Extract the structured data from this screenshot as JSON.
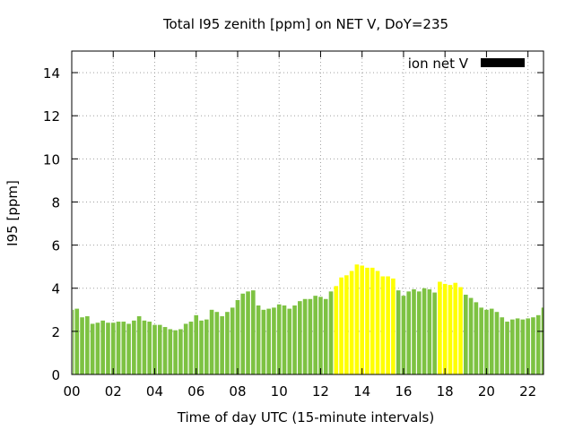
{
  "chart_data": {
    "type": "bar",
    "title": "Total I95 zenith [ppm] on NET V, DoY=235",
    "xlabel": "Time of day UTC (15-minute intervals)",
    "ylabel": "I95 [ppm]",
    "xlim": [
      0,
      22.75
    ],
    "ylim": [
      0,
      15
    ],
    "x_ticks": [
      "00",
      "02",
      "04",
      "06",
      "08",
      "10",
      "12",
      "14",
      "16",
      "18",
      "20",
      "22"
    ],
    "y_ticks": [
      "0",
      "2",
      "4",
      "6",
      "8",
      "10",
      "12",
      "14"
    ],
    "grid": true,
    "legend": {
      "label": "ion net V",
      "position": "top-right",
      "color": "#000000"
    },
    "colors": {
      "normal": "#7dc242",
      "elevated": "#ffff00"
    },
    "bar_interval_hours": 0.25,
    "series": [
      {
        "values": [
          3.0,
          3.05,
          2.65,
          2.7,
          2.35,
          2.4,
          2.5,
          2.4,
          2.4,
          2.45,
          2.45,
          2.35,
          2.5,
          2.7,
          2.5,
          2.45,
          2.3,
          2.3,
          2.2,
          2.1,
          2.05,
          2.1,
          2.35,
          2.45,
          2.75,
          2.5,
          2.55,
          3.0,
          2.9,
          2.7,
          2.9,
          3.1,
          3.45,
          3.75,
          3.85,
          3.9,
          3.2,
          3.0,
          3.05,
          3.1,
          3.25,
          3.2,
          3.05,
          3.2,
          3.4,
          3.5,
          3.5,
          3.65,
          3.6,
          3.5,
          3.85,
          4.1,
          4.5,
          4.6,
          4.8,
          5.1,
          5.05,
          4.95,
          4.95,
          4.8,
          4.55,
          4.55,
          4.45,
          3.9,
          3.65,
          3.85,
          3.95,
          3.85,
          4.0,
          3.95,
          3.8,
          4.3,
          4.2,
          4.15,
          4.25,
          4.05,
          3.7,
          3.55,
          3.35,
          3.1,
          3.0,
          3.05,
          2.9,
          2.65,
          2.45,
          2.55,
          2.6,
          2.55,
          2.6,
          2.65,
          2.75,
          3.1
        ],
        "elevated": [
          false,
          false,
          false,
          false,
          false,
          false,
          false,
          false,
          false,
          false,
          false,
          false,
          false,
          false,
          false,
          false,
          false,
          false,
          false,
          false,
          false,
          false,
          false,
          false,
          false,
          false,
          false,
          false,
          false,
          false,
          false,
          false,
          false,
          false,
          false,
          false,
          false,
          false,
          false,
          false,
          false,
          false,
          false,
          false,
          false,
          false,
          false,
          false,
          false,
          false,
          false,
          true,
          true,
          true,
          true,
          true,
          true,
          true,
          true,
          true,
          true,
          true,
          true,
          false,
          false,
          false,
          false,
          false,
          false,
          false,
          false,
          true,
          true,
          true,
          true,
          true,
          false,
          false,
          false,
          false,
          false,
          false,
          false,
          false,
          false,
          false,
          false,
          false,
          false,
          false,
          false,
          false
        ]
      }
    ]
  }
}
